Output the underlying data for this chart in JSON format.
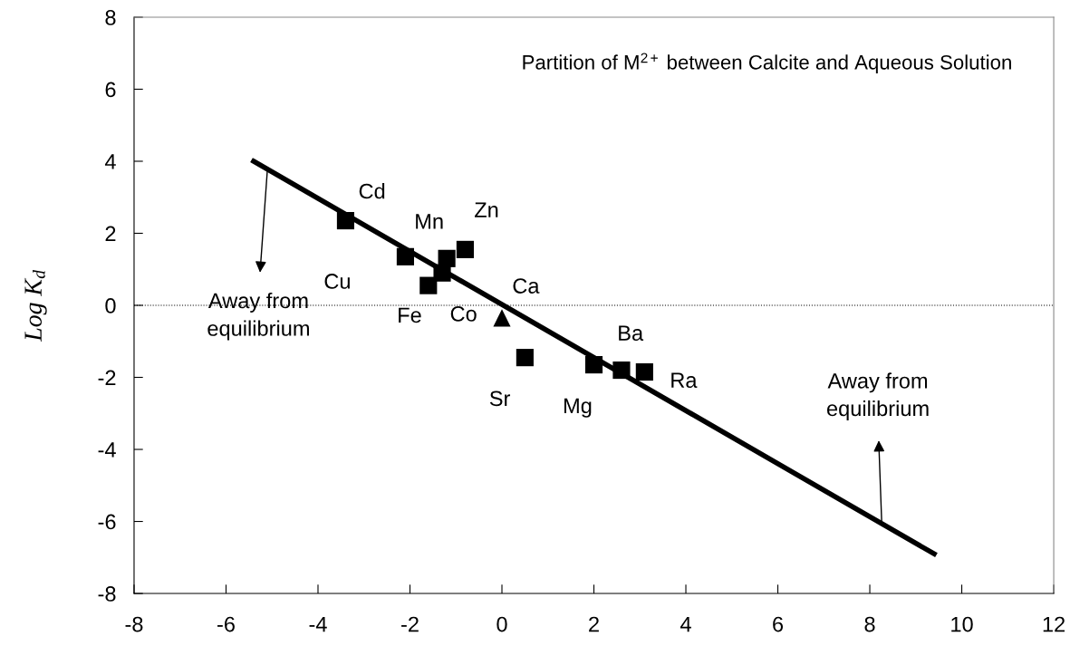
{
  "chart_data": {
    "type": "scatter",
    "title": "Partition of M$^{2+}$ between Calcite and Aqueous Solution",
    "ylabel": "Log K$_{d}$",
    "xlim": [
      -8,
      12
    ],
    "xticks": [
      -8,
      -6,
      -4,
      -2,
      0,
      2,
      4,
      6,
      8,
      10,
      12
    ],
    "ylim": [
      -8,
      8
    ],
    "yticks": [
      -8,
      -6,
      -4,
      -2,
      0,
      2,
      4,
      6,
      8
    ],
    "series": [
      {
        "marker": "square",
        "color": "#000000",
        "x": [
          -3.4,
          -2.1,
          -1.2,
          -0.8,
          -1.3,
          -1.6,
          0.5,
          2.0,
          2.6,
          3.1
        ],
        "values": [
          2.35,
          1.35,
          1.3,
          1.55,
          0.9,
          0.55,
          -1.45,
          -1.65,
          -1.8,
          -1.85
        ]
      },
      {
        "marker": "triangle",
        "color": "#000000",
        "x": [
          0.0
        ],
        "values": [
          -0.35
        ]
      },
      {
        "type": "line",
        "color": "#000000",
        "x": [
          -5.4,
          9.4
        ],
        "values": [
          4.0,
          -6.9
        ]
      }
    ],
    "ref_lines": [
      {
        "axis": "y",
        "value": 0,
        "line_style": "dotted",
        "color": "#000000"
      }
    ],
    "annotations": [
      {
        "text": "Cd",
        "x": -3.4,
        "y": 2.35
      },
      {
        "text": "Cu",
        "x": -2.1,
        "y": 1.35
      },
      {
        "text": "Mn",
        "x": -1.2,
        "y": 1.3
      },
      {
        "text": "Zn",
        "x": -0.8,
        "y": 1.55
      },
      {
        "text": "Co",
        "x": -1.3,
        "y": 0.9
      },
      {
        "text": "Fe",
        "x": -1.6,
        "y": 0.55
      },
      {
        "text": "Ca",
        "x": 0.0,
        "y": -0.35
      },
      {
        "text": "Sr",
        "x": 0.5,
        "y": -1.45
      },
      {
        "text": "Mg",
        "x": 2.0,
        "y": -1.65
      },
      {
        "text": "Ba",
        "x": 2.6,
        "y": -1.8
      },
      {
        "text": "Ra",
        "x": 3.1,
        "y": -1.85
      },
      {
        "text": "Away from\nequilibrium",
        "x": -5.1,
        "y": 3.78
      },
      {
        "text": "Away from\nequilibrium",
        "x": 8.26,
        "y": -6.06
      }
    ],
    "grid": false
  }
}
